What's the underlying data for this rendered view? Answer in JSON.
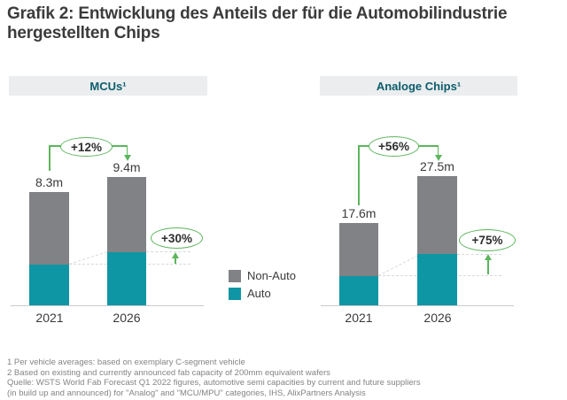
{
  "title_line1": "Grafik 2: Entwicklung des Anteils der für die Automobilindustrie",
  "title_line2": "hergestellten Chips",
  "colors": {
    "auto": "#0f96a4",
    "non_auto": "#808285",
    "green": "#5cb55c",
    "header_bg": "#ebedee",
    "header_text": "#0b5d6d"
  },
  "legend": {
    "non_auto": "Non-Auto",
    "auto": "Auto"
  },
  "panels": [
    {
      "header": "MCUs¹",
      "growth_total": "+12%",
      "growth_auto": "+30%",
      "bars": [
        {
          "year": "2021",
          "total_label": "8.3m",
          "auto": 3.0,
          "non_auto": 5.3
        },
        {
          "year": "2026",
          "total_label": "9.4m",
          "auto": 3.9,
          "non_auto": 5.5
        }
      ]
    },
    {
      "header": "Analoge Chips¹",
      "growth_total": "+56%",
      "growth_auto": "+75%",
      "bars": [
        {
          "year": "2021",
          "total_label": "17.6m",
          "auto": 6.3,
          "non_auto": 11.3
        },
        {
          "year": "2026",
          "total_label": "27.5m",
          "auto": 11.0,
          "non_auto": 16.5
        }
      ]
    }
  ],
  "footnotes": [
    "1 Per vehicle averages: based on exemplary C-segment vehicle",
    "2 Based on existing and currently announced fab capacity of 200mm equivalent wafers",
    "Quelle: WSTS World Fab Forecast Q1 2022 figures, automotive semi capacities by current and future suppliers",
    "(in build up and announced) for \"Analog\" and \"MCU/MPU\" categories, IHS, AlixPartners Analysis"
  ],
  "chart_data": [
    {
      "type": "bar",
      "stacked": true,
      "title": "MCUs¹",
      "categories": [
        "2021",
        "2026"
      ],
      "series": [
        {
          "name": "Auto",
          "values": [
            3.0,
            3.9
          ],
          "color": "#0f96a4"
        },
        {
          "name": "Non-Auto",
          "values": [
            5.3,
            5.5
          ],
          "color": "#808285"
        }
      ],
      "totals": [
        8.3,
        9.4
      ],
      "total_labels": [
        "8.3m",
        "9.4m"
      ],
      "annotations": [
        {
          "label": "+12%",
          "applies_to": "total 2021 to 2026"
        },
        {
          "label": "+30%",
          "applies_to": "Auto segment 2021 to 2026"
        }
      ],
      "ylabel": "",
      "xlabel": "",
      "grid": false,
      "legend_position": "right"
    },
    {
      "type": "bar",
      "stacked": true,
      "title": "Analoge Chips¹",
      "categories": [
        "2021",
        "2026"
      ],
      "series": [
        {
          "name": "Auto",
          "values": [
            6.3,
            11.0
          ],
          "color": "#0f96a4"
        },
        {
          "name": "Non-Auto",
          "values": [
            11.3,
            16.5
          ],
          "color": "#808285"
        }
      ],
      "totals": [
        17.6,
        27.5
      ],
      "total_labels": [
        "17.6m",
        "27.5m"
      ],
      "annotations": [
        {
          "label": "+56%",
          "applies_to": "total 2021 to 2026"
        },
        {
          "label": "+75%",
          "applies_to": "Auto segment 2021 to 2026"
        }
      ],
      "ylabel": "",
      "xlabel": "",
      "grid": false,
      "legend_position": "right"
    }
  ]
}
